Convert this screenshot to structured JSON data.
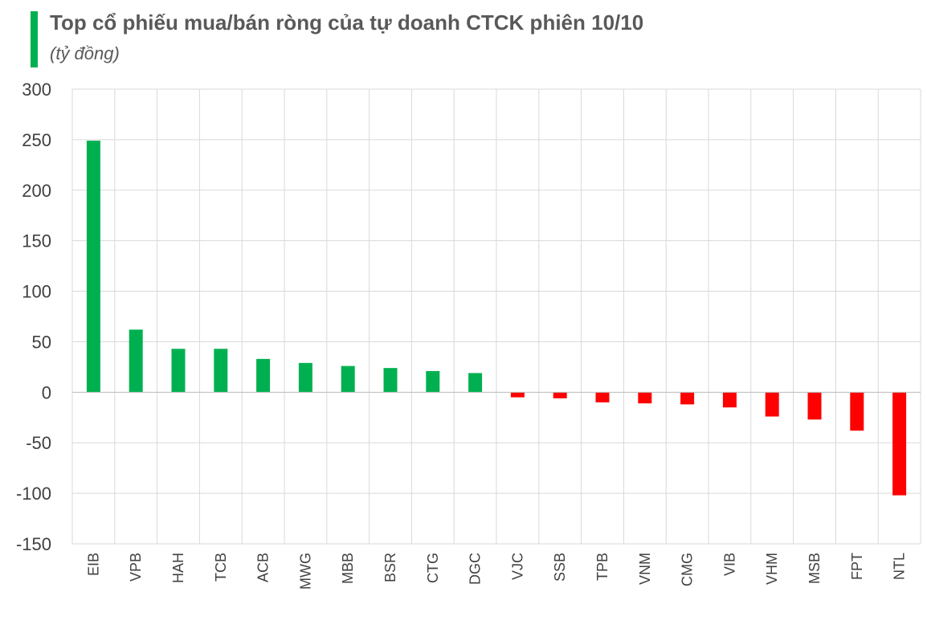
{
  "chart_data": {
    "type": "bar",
    "title": "Top cổ phiếu mua/bán ròng của tự doanh CTCK phiên 10/10",
    "subtitle": "(tỷ đồng)",
    "categories": [
      "EIB",
      "VPB",
      "HAH",
      "TCB",
      "ACB",
      "MWG",
      "MBB",
      "BSR",
      "CTG",
      "DGC",
      "VJC",
      "SSB",
      "TPB",
      "VNM",
      "CMG",
      "VIB",
      "VHM",
      "MSB",
      "FPT",
      "NTL"
    ],
    "values": [
      249,
      62,
      43,
      43,
      33,
      29,
      26,
      24,
      21,
      19,
      -5,
      -6,
      -10,
      -11,
      -12,
      -15,
      -24,
      -27,
      -38,
      -102
    ],
    "ylim": [
      -150,
      300
    ],
    "yticks": [
      "300",
      "250",
      "200",
      "150",
      "100",
      "50",
      "0",
      "-50",
      "-100",
      "-150"
    ],
    "grid": true,
    "colors": {
      "positive": "#00b050",
      "negative": "#ff0000",
      "accent": "#00b050"
    }
  }
}
